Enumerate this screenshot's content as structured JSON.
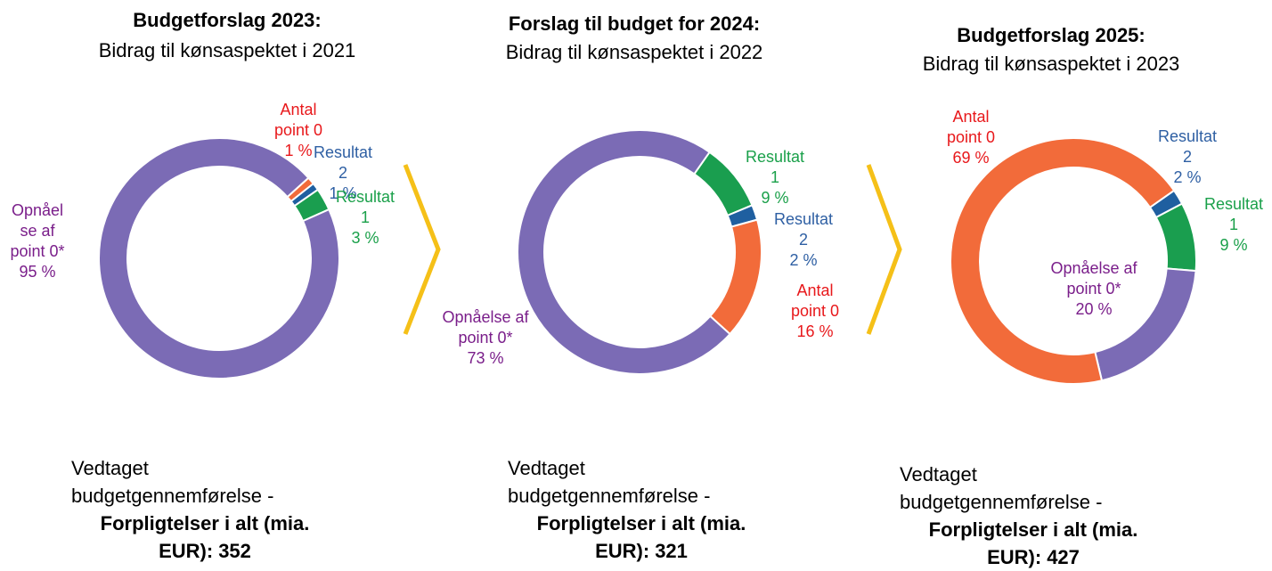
{
  "chart_data": [
    {
      "type": "pie",
      "title": "Budgetforslag 2023:",
      "subtitle": "Bidrag til kønsaspektet i 2021",
      "categories": [
        "Antal point 0",
        "Resultat 2",
        "Resultat 1",
        "Opnåelse af point 0*"
      ],
      "values": [
        1,
        1,
        3,
        95
      ],
      "value_labels": [
        "1 %",
        "1 %",
        "3 %",
        "95 %"
      ],
      "colors": [
        "#f26b3a",
        "#1f5fa0",
        "#1a9e4f",
        "#7b6bb5"
      ],
      "label_colors": [
        "#e8181b",
        "#2e5fa3",
        "#1aa04a",
        "#7a1e8a"
      ],
      "footnote": "Vedtaget budgetgennemførelse -",
      "total_label": "Forpligtelser i alt (mia. EUR):",
      "total": 352
    },
    {
      "type": "pie",
      "title": "Forslag til budget for 2024:",
      "subtitle": "Bidrag til kønsaspektet i 2022",
      "categories": [
        "Resultat 1",
        "Resultat 2",
        "Antal point 0",
        "Opnåelse af point 0*"
      ],
      "values": [
        9,
        2,
        16,
        73
      ],
      "value_labels": [
        "9 %",
        "2 %",
        "16 %",
        "73 %"
      ],
      "colors": [
        "#1a9e4f",
        "#1f5fa0",
        "#f26b3a",
        "#7b6bb5"
      ],
      "label_colors": [
        "#1aa04a",
        "#2e5fa3",
        "#e8181b",
        "#7a1e8a"
      ],
      "footnote": "Vedtaget budgetgennemførelse -",
      "total_label": "Forpligtelser i alt (mia. EUR):",
      "total": 321
    },
    {
      "type": "pie",
      "title": "Budgetforslag 2025:",
      "subtitle": "Bidrag til kønsaspektet i 2023",
      "categories": [
        "Resultat 2",
        "Resultat 1",
        "Opnåelse af point 0*",
        "Antal point 0"
      ],
      "values": [
        2,
        9,
        20,
        69
      ],
      "value_labels": [
        "2 %",
        "9 %",
        "20 %",
        "69 %"
      ],
      "colors": [
        "#1f5fa0",
        "#1a9e4f",
        "#7b6bb5",
        "#f26b3a"
      ],
      "label_colors": [
        "#2e5fa3",
        "#1aa04a",
        "#7a1e8a",
        "#e8181b"
      ],
      "footnote": "Vedtaget budgetgennemførelse -",
      "total_label": "Forpligtelser i alt (mia. EUR):",
      "total": 427
    }
  ]
}
